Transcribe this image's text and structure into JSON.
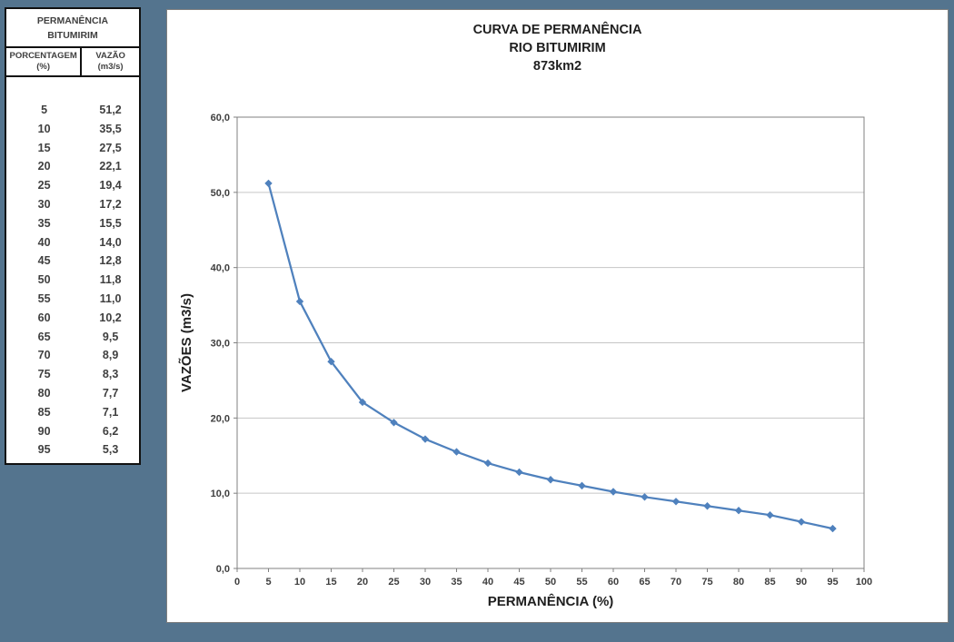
{
  "background_color": "#54748E",
  "table": {
    "title_line1": "PERMANÊNCIA",
    "title_line2": "BITUMIRIM",
    "col1_header": "PORCENTAGEM",
    "col1_unit": "(%)",
    "col2_header": "VAZÃO",
    "col2_unit": "(m3/s)",
    "rows": [
      {
        "pct": "5",
        "flow": "51,2"
      },
      {
        "pct": "10",
        "flow": "35,5"
      },
      {
        "pct": "15",
        "flow": "27,5"
      },
      {
        "pct": "20",
        "flow": "22,1"
      },
      {
        "pct": "25",
        "flow": "19,4"
      },
      {
        "pct": "30",
        "flow": "17,2"
      },
      {
        "pct": "35",
        "flow": "15,5"
      },
      {
        "pct": "40",
        "flow": "14,0"
      },
      {
        "pct": "45",
        "flow": "12,8"
      },
      {
        "pct": "50",
        "flow": "11,8"
      },
      {
        "pct": "55",
        "flow": "11,0"
      },
      {
        "pct": "60",
        "flow": "10,2"
      },
      {
        "pct": "65",
        "flow": "9,5"
      },
      {
        "pct": "70",
        "flow": "8,9"
      },
      {
        "pct": "75",
        "flow": "8,3"
      },
      {
        "pct": "80",
        "flow": "7,7"
      },
      {
        "pct": "85",
        "flow": "7,1"
      },
      {
        "pct": "90",
        "flow": "6,2"
      },
      {
        "pct": "95",
        "flow": "5,3"
      }
    ]
  },
  "chart_data": {
    "type": "line",
    "title_lines": [
      "CURVA DE PERMANÊNCIA",
      "RIO BITUMIRIM",
      "873km2"
    ],
    "xlabel": "PERMANÊNCIA (%)",
    "ylabel": "VAZÕES (m3/s)",
    "x": [
      5,
      10,
      15,
      20,
      25,
      30,
      35,
      40,
      45,
      50,
      55,
      60,
      65,
      70,
      75,
      80,
      85,
      90,
      95
    ],
    "values": [
      51.2,
      35.5,
      27.5,
      22.1,
      19.4,
      17.2,
      15.5,
      14.0,
      12.8,
      11.8,
      11.0,
      10.2,
      9.5,
      8.9,
      8.3,
      7.7,
      7.1,
      6.2,
      5.3
    ],
    "xlim": [
      0,
      100
    ],
    "ylim": [
      0,
      60
    ],
    "x_ticks": [
      0,
      5,
      10,
      15,
      20,
      25,
      30,
      35,
      40,
      45,
      50,
      55,
      60,
      65,
      70,
      75,
      80,
      85,
      90,
      95,
      100
    ],
    "y_ticks": [
      0,
      10,
      20,
      30,
      40,
      50,
      60
    ],
    "y_tick_labels": [
      "0,0",
      "10,0",
      "20,0",
      "30,0",
      "40,0",
      "50,0",
      "60,0"
    ],
    "grid": true,
    "legend": "none",
    "line_color": "#4F81BD",
    "grid_color": "#C6C6C6",
    "axis_color": "#808080"
  }
}
